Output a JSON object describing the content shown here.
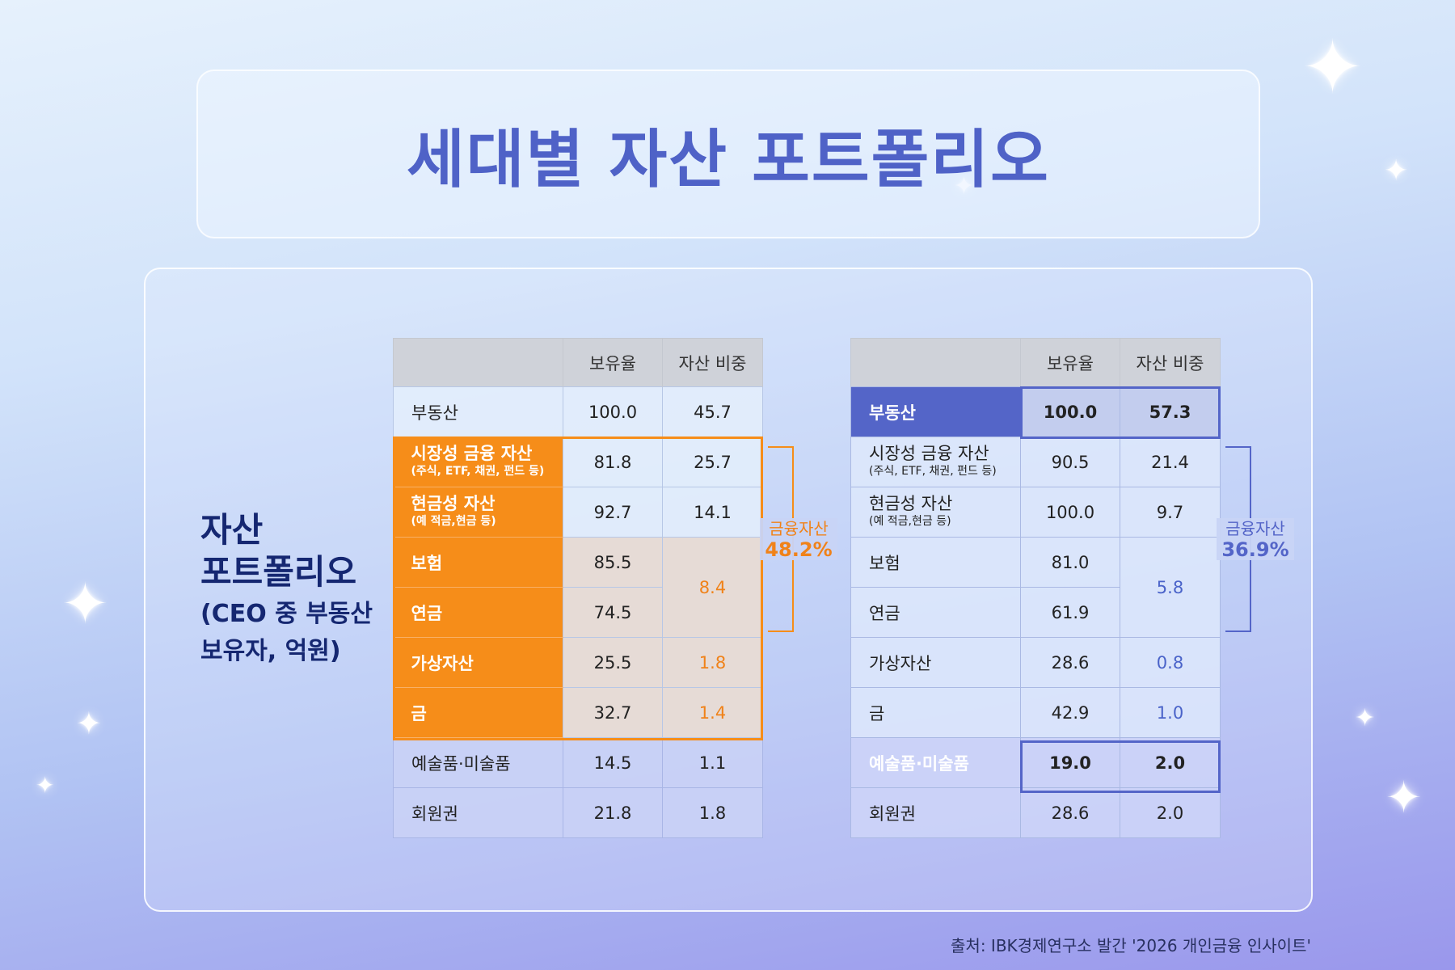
{
  "title": "세대별 자산 포트폴리오",
  "side": {
    "title_l1": "자산",
    "title_l2": "포트폴리오",
    "sub_l1": "(CEO 중 부동산",
    "sub_l2": "보유자, 억원)"
  },
  "chart_data": [
    {
      "type": "table",
      "columns": [
        "",
        "보유율",
        "자산 비중"
      ],
      "rows": [
        {
          "name": "부동산",
          "holding": "100.0",
          "share": "45.7"
        },
        {
          "name": "시장성 금융 자산",
          "sub": "(주식, ETF, 채권, 펀드 등)",
          "holding": "81.8",
          "share": "25.7"
        },
        {
          "name": "현금성 자산",
          "sub": "(예 적금,현금 등)",
          "holding": "92.7",
          "share": "14.1"
        },
        {
          "name": "보험",
          "holding": "85.5",
          "share": "8.4"
        },
        {
          "name": "연금",
          "holding": "74.5",
          "share": "8.4"
        },
        {
          "name": "가상자산",
          "holding": "25.5",
          "share": "1.8"
        },
        {
          "name": "금",
          "holding": "32.7",
          "share": "1.4"
        },
        {
          "name": "예술품·미술품",
          "holding": "14.5",
          "share": "1.1"
        },
        {
          "name": "회원권",
          "holding": "21.8",
          "share": "1.8"
        }
      ],
      "bracket": {
        "label": "금융자산",
        "value": "48.2%"
      },
      "accent": "#f68d19"
    },
    {
      "type": "table",
      "columns": [
        "",
        "보유율",
        "자산 비중"
      ],
      "rows": [
        {
          "name": "부동산",
          "holding": "100.0",
          "share": "57.3"
        },
        {
          "name": "시장성 금융 자산",
          "sub": "(주식, ETF, 채권, 펀드 등)",
          "holding": "90.5",
          "share": "21.4"
        },
        {
          "name": "현금성 자산",
          "sub": "(예 적금,현금 등)",
          "holding": "100.0",
          "share": "9.7"
        },
        {
          "name": "보험",
          "holding": "81.0",
          "share": "5.8"
        },
        {
          "name": "연금",
          "holding": "61.9",
          "share": "5.8"
        },
        {
          "name": "가상자산",
          "holding": "28.6",
          "share": "0.8"
        },
        {
          "name": "금",
          "holding": "42.9",
          "share": "1.0"
        },
        {
          "name": "예술품·미술품",
          "holding": "19.0",
          "share": "2.0"
        },
        {
          "name": "회원권",
          "holding": "28.6",
          "share": "2.0"
        }
      ],
      "bracket": {
        "label": "금융자산",
        "value": "36.9%"
      },
      "accent": "#5465c8"
    }
  ],
  "footer": "출처: IBK경제연구소 발간 '2026 개인금융 인사이트'"
}
